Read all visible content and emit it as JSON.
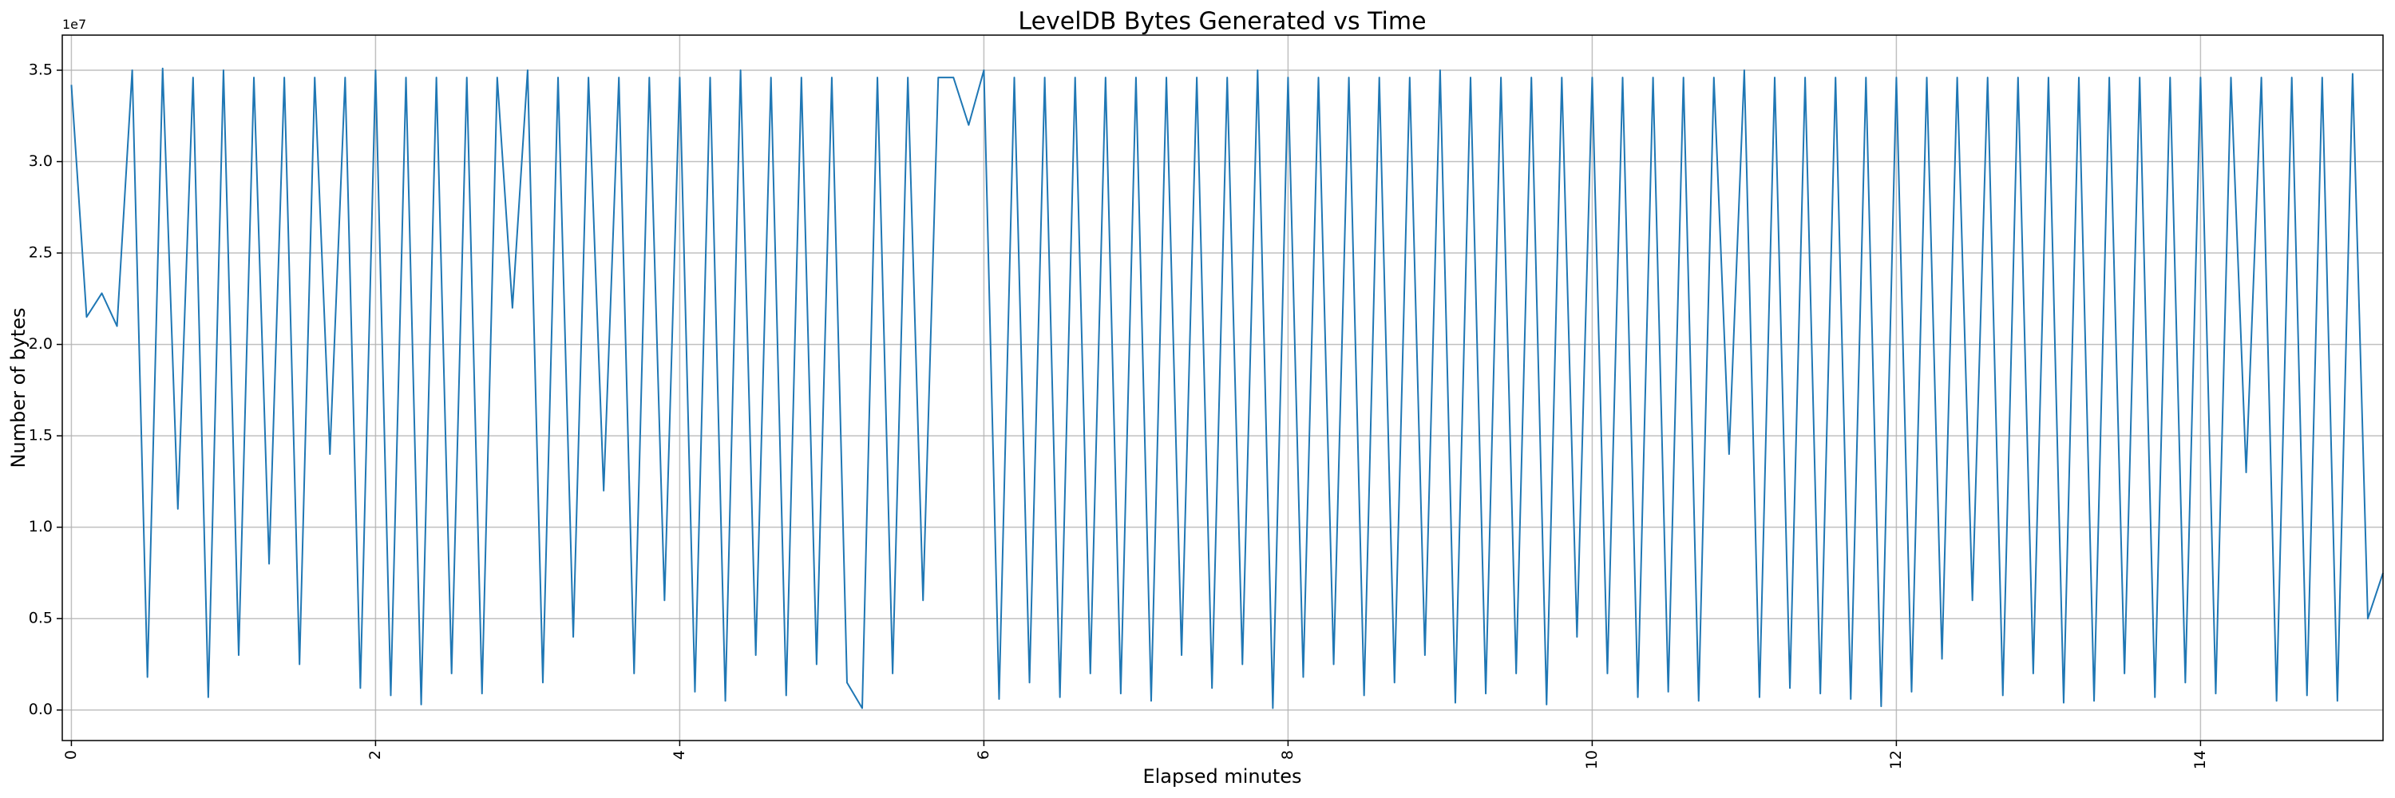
{
  "chart_data": {
    "type": "line",
    "title": "LevelDB Bytes Generated vs Time",
    "x_label": "Elapsed minutes",
    "y_label": "Number of bytes",
    "y_offset_label": "1e7",
    "grid": true,
    "xlim": [
      -0.06,
      15.2
    ],
    "xticks": [
      0,
      2,
      4,
      6,
      8,
      10,
      12,
      14
    ],
    "ylim": [
      -1670000,
      36920000
    ],
    "yticks": [
      {
        "value": 0,
        "label": "0.0"
      },
      {
        "value": 5000000,
        "label": "0.5"
      },
      {
        "value": 10000000,
        "label": "1.0"
      },
      {
        "value": 15000000,
        "label": "1.5"
      },
      {
        "value": 20000000,
        "label": "2.0"
      },
      {
        "value": 25000000,
        "label": "2.5"
      },
      {
        "value": 30000000,
        "label": "3.0"
      },
      {
        "value": 35000000,
        "label": "3.5"
      }
    ],
    "x": [
      0,
      0.1,
      0.2,
      0.3,
      0.4,
      0.5,
      0.6,
      0.7,
      0.8,
      0.9,
      1,
      1.1,
      1.2,
      1.3,
      1.4,
      1.5,
      1.6,
      1.7,
      1.8,
      1.9,
      2,
      2.1,
      2.2,
      2.3,
      2.4,
      2.5,
      2.6,
      2.7,
      2.8,
      2.9,
      3,
      3.1,
      3.2,
      3.3,
      3.4,
      3.5,
      3.6,
      3.7,
      3.8,
      3.9,
      4,
      4.1,
      4.2,
      4.3,
      4.4,
      4.5,
      4.6,
      4.7,
      4.8,
      4.9,
      5,
      5.1,
      5.2,
      5.3,
      5.4,
      5.5,
      5.6,
      5.7,
      5.8,
      5.9,
      6,
      6.1,
      6.2,
      6.3,
      6.4,
      6.5,
      6.6,
      6.7,
      6.8,
      6.9,
      7,
      7.1,
      7.2,
      7.3,
      7.4,
      7.5,
      7.6,
      7.7,
      7.8,
      7.9,
      8,
      8.1,
      8.2,
      8.3,
      8.4,
      8.5,
      8.6,
      8.7,
      8.8,
      8.9,
      9,
      9.1,
      9.2,
      9.3,
      9.4,
      9.5,
      9.6,
      9.7,
      9.8,
      9.9,
      10,
      10.1,
      10.2,
      10.3,
      10.4,
      10.5,
      10.6,
      10.7,
      10.8,
      10.9,
      11,
      11.1,
      11.2,
      11.3,
      11.4,
      11.5,
      11.6,
      11.7,
      11.8,
      11.9,
      12,
      12.1,
      12.2,
      12.3,
      12.4,
      12.5,
      12.6,
      12.7,
      12.8,
      12.9,
      13,
      13.1,
      13.2,
      13.3,
      13.4,
      13.5,
      13.6,
      13.7,
      13.8,
      13.9,
      14,
      14.1,
      14.2,
      14.3,
      14.4,
      14.5,
      14.6,
      14.7,
      14.8,
      14.9,
      15,
      15.1,
      15.2
    ],
    "series": [
      {
        "color": "#1f77b4",
        "values": [
          34200000,
          21500000,
          22800000,
          21000000,
          35000000,
          1800000,
          35100000,
          11000000,
          34600000,
          700000,
          35000000,
          3000000,
          34600000,
          8000000,
          34600000,
          2500000,
          34600000,
          14000000,
          34600000,
          1200000,
          35000000,
          800000,
          34600000,
          300000,
          34600000,
          2000000,
          34600000,
          900000,
          34600000,
          22000000,
          35000000,
          1500000,
          34600000,
          4000000,
          34600000,
          12000000,
          34600000,
          2000000,
          34600000,
          6000000,
          34600000,
          1000000,
          34600000,
          500000,
          35000000,
          3000000,
          34600000,
          800000,
          34600000,
          2500000,
          34600000,
          1500000,
          100000,
          34600000,
          2000000,
          34600000,
          6000000,
          34600000,
          34600000,
          32000000,
          35000000,
          600000,
          34600000,
          1500000,
          34600000,
          700000,
          34600000,
          2000000,
          34600000,
          900000,
          34600000,
          500000,
          34600000,
          3000000,
          34600000,
          1200000,
          34600000,
          2500000,
          35000000,
          100000,
          34600000,
          1800000,
          34600000,
          2500000,
          34600000,
          800000,
          34600000,
          1500000,
          34600000,
          3000000,
          35000000,
          400000,
          34600000,
          900000,
          34600000,
          2000000,
          34600000,
          300000,
          34600000,
          4000000,
          34600000,
          2000000,
          34600000,
          700000,
          34600000,
          1000000,
          34600000,
          500000,
          34600000,
          14000000,
          35000000,
          700000,
          34600000,
          1200000,
          34600000,
          900000,
          34600000,
          600000,
          34600000,
          200000,
          34600000,
          1000000,
          34600000,
          2800000,
          34600000,
          6000000,
          34600000,
          800000,
          34600000,
          2000000,
          34600000,
          400000,
          34600000,
          500000,
          34600000,
          2000000,
          34600000,
          700000,
          34600000,
          1500000,
          34600000,
          900000,
          34600000,
          13000000,
          34600000,
          500000,
          34600000,
          800000,
          34600000,
          500000,
          34800000,
          5000000,
          7500000
        ]
      }
    ]
  }
}
